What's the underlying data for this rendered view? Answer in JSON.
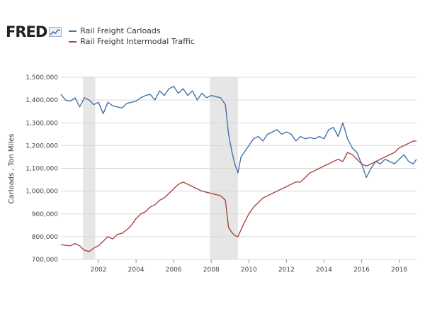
{
  "brand": {
    "name": "FRED",
    "icon": "fred-chart-icon"
  },
  "colors": {
    "blue": "#4572a7",
    "red": "#aa4643",
    "recession": "#e6e6e6",
    "grid": "#d9d9d9"
  },
  "chart_data": {
    "type": "line",
    "title": "",
    "xlabel": "",
    "ylabel": "Carloads , Ton Miles",
    "xlim": [
      2000.0,
      2018.92
    ],
    "ylim": [
      700000,
      1500000
    ],
    "yticks": [
      700000,
      800000,
      900000,
      1000000,
      1100000,
      1200000,
      1300000,
      1400000,
      1500000
    ],
    "ytick_labels": [
      "700,000",
      "800,000",
      "900,000",
      "1,000,000",
      "1,100,000",
      "1,200,000",
      "1,300,000",
      "1,400,000",
      "1,500,000"
    ],
    "xticks": [
      2002,
      2004,
      2006,
      2008,
      2010,
      2012,
      2014,
      2016,
      2018
    ],
    "xtick_labels": [
      "2002",
      "2004",
      "2006",
      "2008",
      "2010",
      "2012",
      "2014",
      "2016",
      "2018"
    ],
    "grid": "horizontal",
    "legend": "top-left",
    "recessions": [
      [
        2001.17,
        2001.83
      ],
      [
        2007.92,
        2009.42
      ]
    ],
    "series": [
      {
        "name": "Rail Freight Carloads",
        "color": "#4572a7",
        "points": [
          [
            2000.0,
            1425000
          ],
          [
            2000.25,
            1400000
          ],
          [
            2000.5,
            1395000
          ],
          [
            2000.75,
            1410000
          ],
          [
            2001.0,
            1370000
          ],
          [
            2001.25,
            1410000
          ],
          [
            2001.5,
            1400000
          ],
          [
            2001.75,
            1380000
          ],
          [
            2002.0,
            1390000
          ],
          [
            2002.25,
            1340000
          ],
          [
            2002.5,
            1390000
          ],
          [
            2002.75,
            1375000
          ],
          [
            2003.0,
            1370000
          ],
          [
            2003.25,
            1365000
          ],
          [
            2003.5,
            1385000
          ],
          [
            2003.75,
            1390000
          ],
          [
            2004.0,
            1395000
          ],
          [
            2004.25,
            1410000
          ],
          [
            2004.5,
            1420000
          ],
          [
            2004.75,
            1425000
          ],
          [
            2005.0,
            1400000
          ],
          [
            2005.25,
            1440000
          ],
          [
            2005.5,
            1420000
          ],
          [
            2005.75,
            1450000
          ],
          [
            2006.0,
            1460000
          ],
          [
            2006.25,
            1430000
          ],
          [
            2006.5,
            1450000
          ],
          [
            2006.75,
            1420000
          ],
          [
            2007.0,
            1440000
          ],
          [
            2007.25,
            1400000
          ],
          [
            2007.5,
            1430000
          ],
          [
            2007.75,
            1410000
          ],
          [
            2008.0,
            1420000
          ],
          [
            2008.25,
            1415000
          ],
          [
            2008.5,
            1410000
          ],
          [
            2008.75,
            1380000
          ],
          [
            2008.92,
            1250000
          ],
          [
            2009.08,
            1180000
          ],
          [
            2009.25,
            1120000
          ],
          [
            2009.42,
            1080000
          ],
          [
            2009.58,
            1150000
          ],
          [
            2009.75,
            1170000
          ],
          [
            2010.0,
            1200000
          ],
          [
            2010.25,
            1230000
          ],
          [
            2010.5,
            1240000
          ],
          [
            2010.75,
            1220000
          ],
          [
            2011.0,
            1250000
          ],
          [
            2011.25,
            1260000
          ],
          [
            2011.5,
            1270000
          ],
          [
            2011.75,
            1250000
          ],
          [
            2012.0,
            1260000
          ],
          [
            2012.25,
            1250000
          ],
          [
            2012.5,
            1220000
          ],
          [
            2012.75,
            1240000
          ],
          [
            2013.0,
            1230000
          ],
          [
            2013.25,
            1235000
          ],
          [
            2013.5,
            1230000
          ],
          [
            2013.75,
            1240000
          ],
          [
            2014.0,
            1230000
          ],
          [
            2014.25,
            1270000
          ],
          [
            2014.5,
            1280000
          ],
          [
            2014.75,
            1240000
          ],
          [
            2015.0,
            1300000
          ],
          [
            2015.25,
            1230000
          ],
          [
            2015.5,
            1190000
          ],
          [
            2015.75,
            1170000
          ],
          [
            2016.0,
            1120000
          ],
          [
            2016.25,
            1060000
          ],
          [
            2016.5,
            1100000
          ],
          [
            2016.75,
            1130000
          ],
          [
            2017.0,
            1120000
          ],
          [
            2017.25,
            1140000
          ],
          [
            2017.5,
            1130000
          ],
          [
            2017.75,
            1120000
          ],
          [
            2018.0,
            1140000
          ],
          [
            2018.25,
            1160000
          ],
          [
            2018.5,
            1130000
          ],
          [
            2018.75,
            1120000
          ],
          [
            2018.92,
            1140000
          ]
        ]
      },
      {
        "name": "Rail Freight Intermodal Traffic",
        "color": "#aa4643",
        "points": [
          [
            2000.0,
            765000
          ],
          [
            2000.25,
            762000
          ],
          [
            2000.5,
            760000
          ],
          [
            2000.75,
            770000
          ],
          [
            2001.0,
            760000
          ],
          [
            2001.25,
            740000
          ],
          [
            2001.5,
            735000
          ],
          [
            2001.75,
            750000
          ],
          [
            2002.0,
            760000
          ],
          [
            2002.25,
            780000
          ],
          [
            2002.5,
            800000
          ],
          [
            2002.75,
            790000
          ],
          [
            2003.0,
            810000
          ],
          [
            2003.25,
            815000
          ],
          [
            2003.5,
            830000
          ],
          [
            2003.75,
            850000
          ],
          [
            2004.0,
            880000
          ],
          [
            2004.25,
            900000
          ],
          [
            2004.5,
            910000
          ],
          [
            2004.75,
            930000
          ],
          [
            2005.0,
            940000
          ],
          [
            2005.25,
            960000
          ],
          [
            2005.5,
            970000
          ],
          [
            2005.75,
            990000
          ],
          [
            2006.0,
            1010000
          ],
          [
            2006.25,
            1030000
          ],
          [
            2006.5,
            1040000
          ],
          [
            2006.75,
            1030000
          ],
          [
            2007.0,
            1020000
          ],
          [
            2007.25,
            1010000
          ],
          [
            2007.5,
            1000000
          ],
          [
            2007.75,
            995000
          ],
          [
            2008.0,
            990000
          ],
          [
            2008.25,
            985000
          ],
          [
            2008.5,
            980000
          ],
          [
            2008.75,
            960000
          ],
          [
            2008.92,
            840000
          ],
          [
            2009.08,
            820000
          ],
          [
            2009.25,
            805000
          ],
          [
            2009.42,
            800000
          ],
          [
            2009.58,
            830000
          ],
          [
            2009.75,
            860000
          ],
          [
            2010.0,
            900000
          ],
          [
            2010.25,
            930000
          ],
          [
            2010.5,
            950000
          ],
          [
            2010.75,
            970000
          ],
          [
            2011.0,
            980000
          ],
          [
            2011.25,
            990000
          ],
          [
            2011.5,
            1000000
          ],
          [
            2011.75,
            1010000
          ],
          [
            2012.0,
            1020000
          ],
          [
            2012.25,
            1030000
          ],
          [
            2012.5,
            1040000
          ],
          [
            2012.75,
            1040000
          ],
          [
            2013.0,
            1060000
          ],
          [
            2013.25,
            1080000
          ],
          [
            2013.5,
            1090000
          ],
          [
            2013.75,
            1100000
          ],
          [
            2014.0,
            1110000
          ],
          [
            2014.25,
            1120000
          ],
          [
            2014.5,
            1130000
          ],
          [
            2014.75,
            1140000
          ],
          [
            2015.0,
            1130000
          ],
          [
            2015.25,
            1170000
          ],
          [
            2015.5,
            1160000
          ],
          [
            2015.75,
            1140000
          ],
          [
            2016.0,
            1120000
          ],
          [
            2016.25,
            1110000
          ],
          [
            2016.5,
            1120000
          ],
          [
            2016.75,
            1130000
          ],
          [
            2017.0,
            1140000
          ],
          [
            2017.25,
            1150000
          ],
          [
            2017.5,
            1160000
          ],
          [
            2017.75,
            1170000
          ],
          [
            2018.0,
            1190000
          ],
          [
            2018.25,
            1200000
          ],
          [
            2018.5,
            1210000
          ],
          [
            2018.75,
            1220000
          ],
          [
            2018.92,
            1220000
          ]
        ]
      }
    ]
  }
}
